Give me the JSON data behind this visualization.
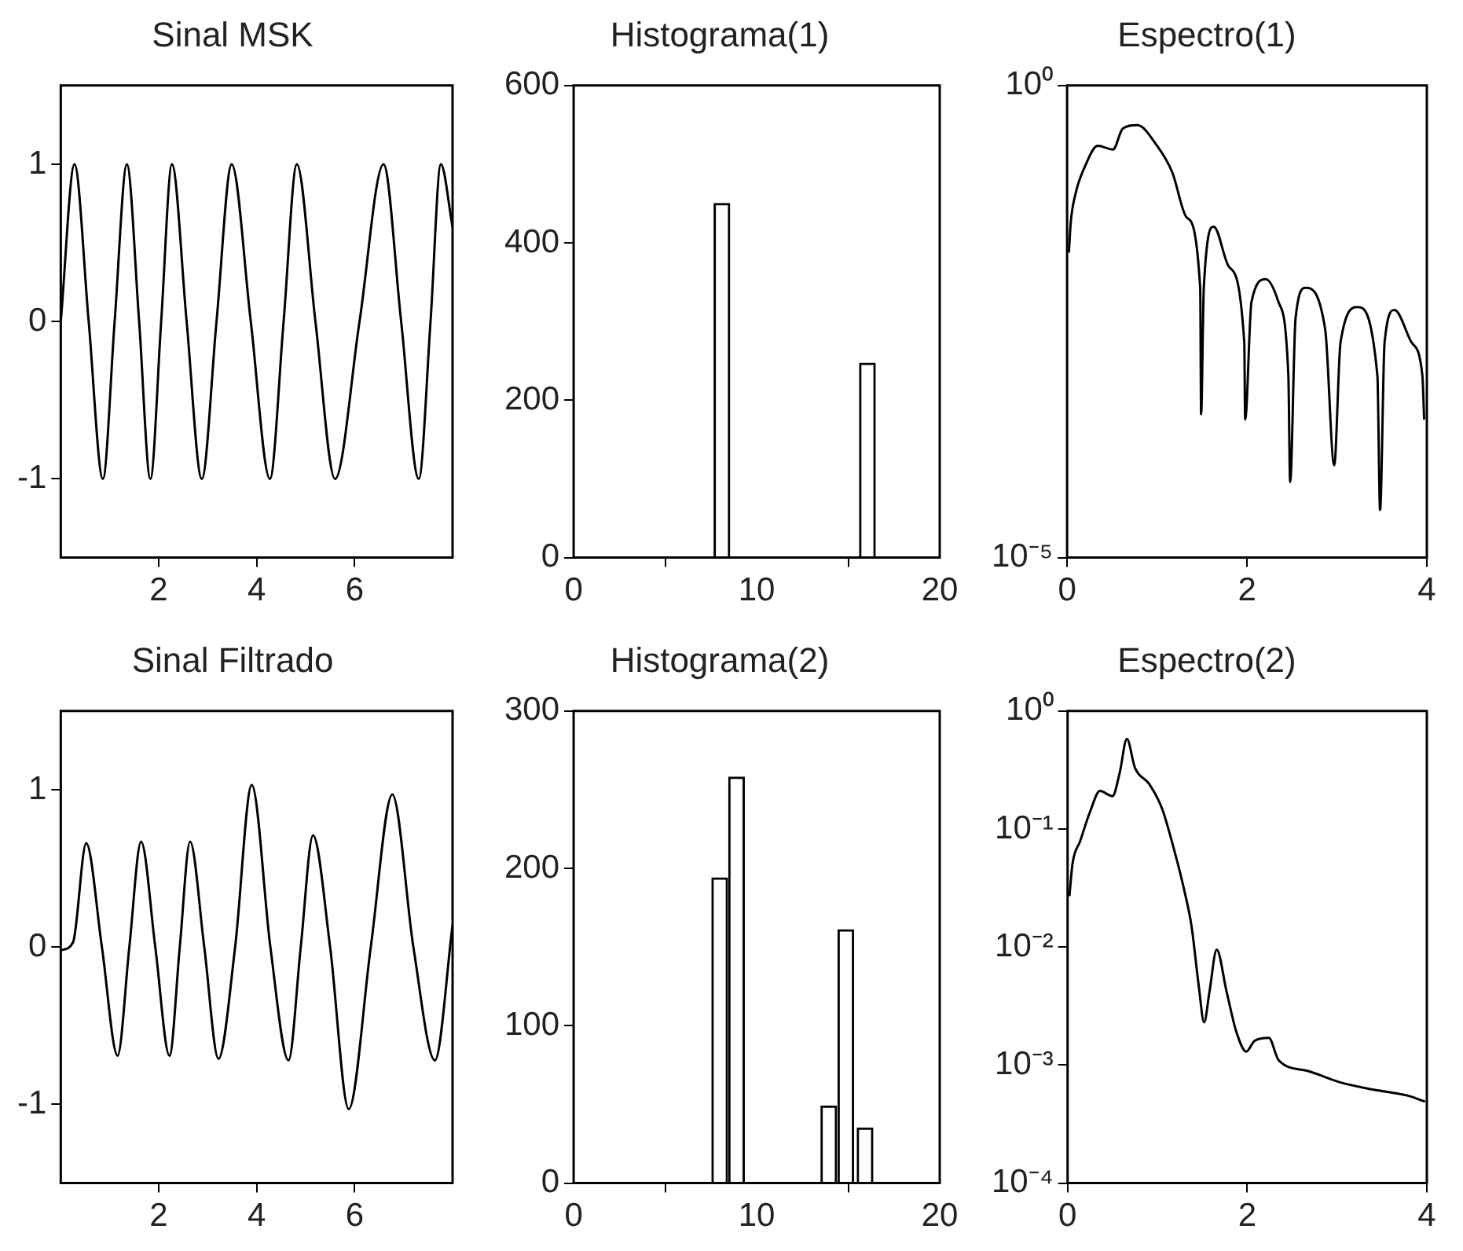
{
  "chart_data": [
    {
      "type": "line",
      "title": "Sinal MSK",
      "color": "#000000",
      "xlim": [
        0,
        8
      ],
      "xticks": [
        2,
        4,
        6
      ],
      "ylim": [
        -1.5,
        1.5
      ],
      "yticks": [
        -1,
        0,
        1
      ],
      "x": [
        0,
        0.28,
        0.57,
        0.86,
        1.1,
        1.35,
        1.6,
        1.83,
        2.05,
        2.27,
        2.57,
        2.88,
        3.18,
        3.49,
        3.88,
        4.27,
        4.55,
        4.82,
        5.2,
        5.6,
        6.1,
        6.59,
        6.95,
        7.31,
        7.55,
        7.76,
        8
      ],
      "values": [
        0,
        1,
        0,
        -1,
        0,
        1,
        0,
        -1,
        0,
        1,
        0,
        -1,
        0,
        1,
        0,
        -1,
        0,
        1,
        0,
        -1,
        0,
        1,
        0,
        -1,
        0,
        1,
        0.6
      ]
    },
    {
      "type": "bar",
      "title": "Histograma(1)",
      "color": "#ffffff",
      "xlim": [
        0,
        20
      ],
      "xticks": [
        0,
        10,
        20
      ],
      "ylim": [
        0,
        600
      ],
      "yticks": [
        0,
        200,
        400,
        600
      ],
      "x": [
        8.1,
        16.05
      ],
      "values": [
        450,
        247
      ]
    },
    {
      "type": "line",
      "title": "Espectro(1)",
      "color": "#000000",
      "log": "y",
      "xlim": [
        0,
        4
      ],
      "xticks": [
        0,
        2,
        4
      ],
      "ylim": [
        1e-05,
        1
      ],
      "yticks": [
        {
          "value": 1,
          "label": "10⁰"
        },
        {
          "value": 1e-05,
          "label": "10⁻⁵"
        }
      ],
      "x": [
        0.02,
        0.04,
        0.09,
        0.2,
        0.34,
        0.51,
        0.62,
        0.78,
        1.0,
        1.17,
        1.33,
        1.48,
        1.49,
        1.52,
        1.63,
        1.8,
        1.97,
        1.98,
        2.05,
        2.21,
        2.35,
        2.46,
        2.48,
        2.54,
        2.65,
        2.87,
        2.97,
        3.04,
        3.23,
        3.45,
        3.48,
        3.53,
        3.64,
        3.83,
        3.95,
        3.97
      ],
      "values": [
        0.017,
        0.035,
        0.069,
        0.14,
        0.23,
        0.21,
        0.35,
        0.38,
        0.23,
        0.12,
        0.04,
        0.0072,
        0.00033,
        0.0072,
        0.032,
        0.012,
        0.0019,
        0.00029,
        0.0051,
        0.0089,
        0.0051,
        0.00085,
        6.3e-05,
        0.0034,
        0.0072,
        0.0026,
        9.5e-05,
        0.0019,
        0.0045,
        0.00085,
        3.2e-05,
        0.0019,
        0.0042,
        0.0019,
        0.00085,
        0.00029
      ]
    },
    {
      "type": "line",
      "title": "Sinal Filtrado",
      "color": "#000000",
      "xlim": [
        0,
        8
      ],
      "xticks": [
        2,
        4,
        6
      ],
      "ylim": [
        -1.5,
        1.5
      ],
      "yticks": [
        -1,
        0,
        1
      ],
      "x": [
        0,
        0.25,
        0.52,
        0.84,
        1.16,
        1.4,
        1.64,
        1.93,
        2.22,
        2.43,
        2.64,
        2.93,
        3.22,
        3.56,
        3.9,
        4.28,
        4.65,
        4.9,
        5.15,
        5.5,
        5.88,
        6.33,
        6.77,
        7.2,
        7.64,
        8
      ],
      "values": [
        -0.02,
        0.03,
        0.66,
        0,
        -0.69,
        0,
        0.67,
        0,
        -0.69,
        0,
        0.67,
        0,
        -0.71,
        0,
        1.03,
        0,
        -0.72,
        0,
        0.71,
        0,
        -1.03,
        0,
        0.97,
        0,
        -0.72,
        0.14
      ]
    },
    {
      "type": "bar",
      "title": "Histograma(2)",
      "color": "#ffffff",
      "xlim": [
        0,
        20
      ],
      "xticks": [
        0,
        10,
        20
      ],
      "ylim": [
        0,
        300
      ],
      "yticks": [
        0,
        100,
        200,
        300
      ],
      "x": [
        7.98,
        8.9,
        13.94,
        14.87,
        15.92
      ],
      "values": [
        194,
        258,
        49,
        161,
        35
      ]
    },
    {
      "type": "line",
      "title": "Espectro(2)",
      "color": "#000000",
      "log": "y",
      "xlim": [
        0,
        4
      ],
      "xticks": [
        0,
        2,
        4
      ],
      "ylim": [
        0.0001,
        1
      ],
      "yticks": [
        {
          "value": 1,
          "label": "10⁰"
        },
        {
          "value": 0.1,
          "label": "10⁻¹"
        },
        {
          "value": 0.01,
          "label": "10⁻²"
        },
        {
          "value": 0.001,
          "label": "10⁻³"
        },
        {
          "value": 0.0001,
          "label": "10⁻⁴"
        }
      ],
      "x": [
        0.02,
        0.055,
        0.14,
        0.25,
        0.36,
        0.5,
        0.58,
        0.66,
        0.75,
        0.91,
        1.05,
        1.19,
        1.3,
        1.38,
        1.46,
        1.52,
        1.58,
        1.66,
        1.77,
        1.88,
        1.99,
        2.08,
        2.24,
        2.35,
        2.68,
        3.02,
        3.4,
        3.79,
        3.98
      ],
      "values": [
        0.027,
        0.051,
        0.079,
        0.14,
        0.21,
        0.19,
        0.3,
        0.58,
        0.33,
        0.24,
        0.15,
        0.065,
        0.03,
        0.015,
        0.0047,
        0.0023,
        0.0042,
        0.0095,
        0.0042,
        0.0019,
        0.0013,
        0.0016,
        0.0017,
        0.0011,
        0.00089,
        0.00072,
        0.00062,
        0.00055,
        0.00049
      ]
    }
  ]
}
